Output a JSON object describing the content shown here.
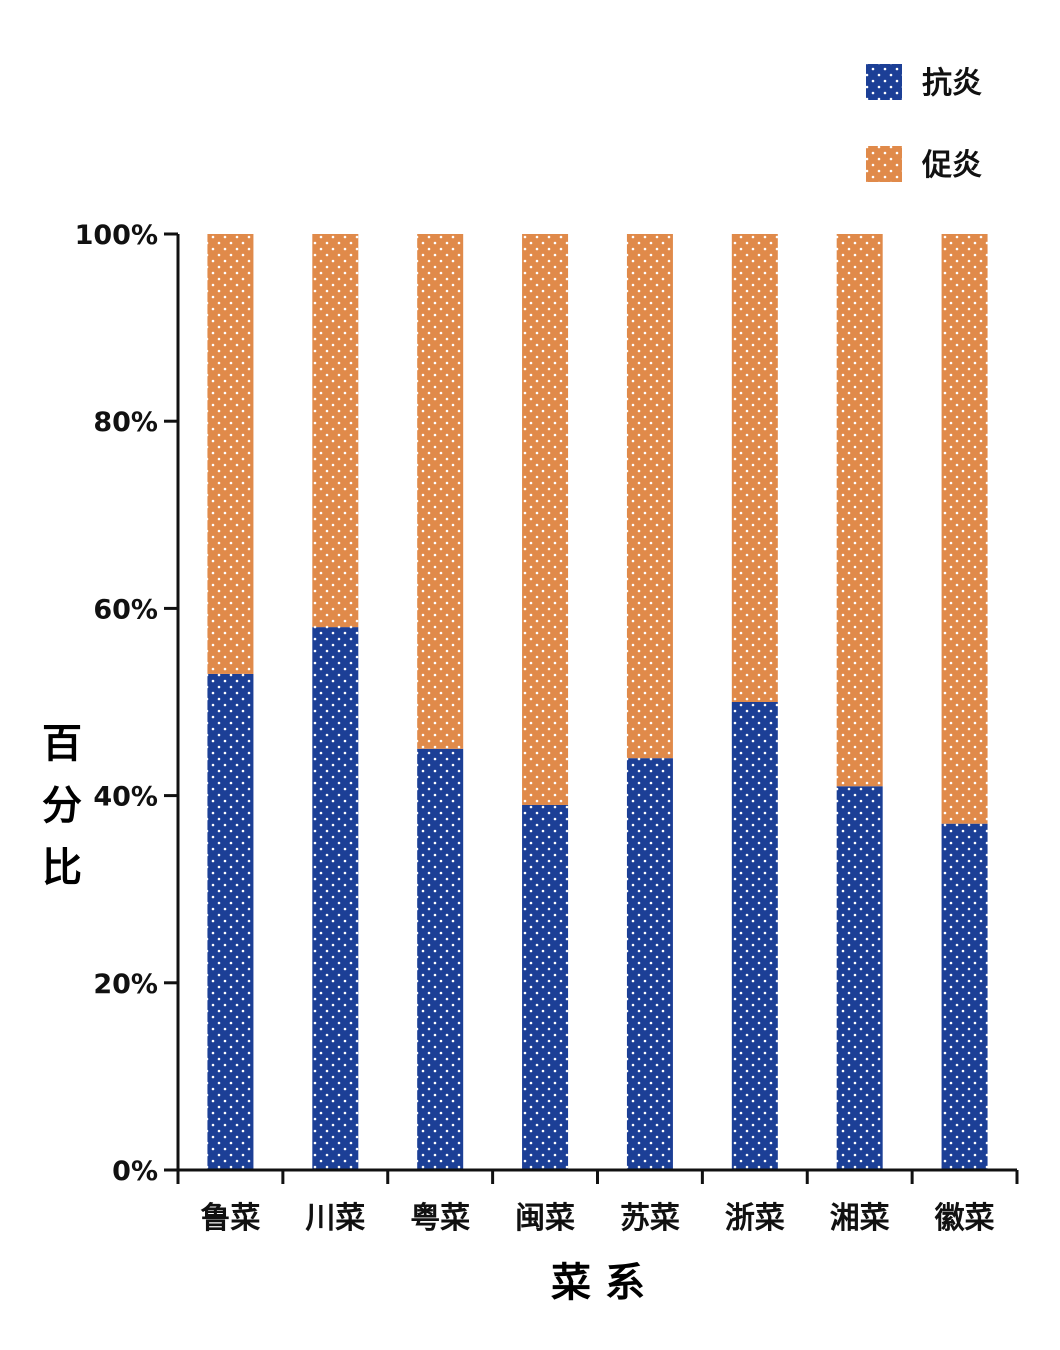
{
  "chart_data": {
    "type": "bar",
    "stacked": true,
    "categories": [
      "鲁菜",
      "川菜",
      "粤菜",
      "闽菜",
      "苏菜",
      "浙菜",
      "湘菜",
      "徽菜"
    ],
    "series": [
      {
        "name": "抗炎",
        "color": "#1c3f96",
        "pattern": "white-dots",
        "values": [
          53,
          58,
          45,
          39,
          44,
          50,
          41,
          37
        ]
      },
      {
        "name": "促炎",
        "color": "#e08a4a",
        "pattern": "white-dots",
        "values": [
          47,
          42,
          55,
          61,
          56,
          50,
          59,
          63
        ]
      }
    ],
    "xlabel": "菜 系",
    "ylabel": "百分比",
    "ylim": [
      0,
      100
    ],
    "yticks": [
      "0%",
      "20%",
      "40%",
      "60%",
      "80%",
      "100%"
    ],
    "legend_position": "top-right",
    "grid": false
  }
}
